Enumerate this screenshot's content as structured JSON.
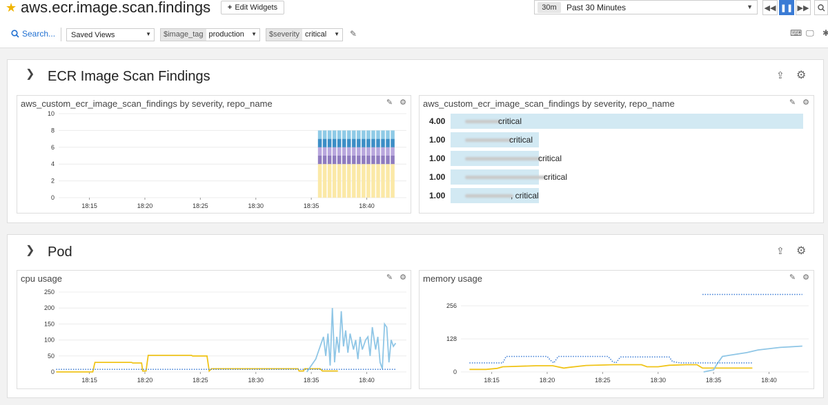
{
  "header": {
    "title": "aws.ecr.image.scan.findings",
    "edit_widgets": "Edit Widgets",
    "time_chip": "30m",
    "time_range": "Past 30 Minutes"
  },
  "filters": {
    "search": "Search...",
    "saved_views": "Saved Views",
    "image_tag_key": "$image_tag",
    "image_tag_value": "production",
    "severity_key": "$severity",
    "severity_value": "critical"
  },
  "groups": [
    {
      "title": "ECR Image Scan Findings",
      "widgets": [
        {
          "title": "aws_custom_ecr_image_scan_findings by severity, repo_name",
          "chart_data": {
            "type": "bar",
            "stacked": true,
            "x_ticks": [
              "18:15",
              "18:20",
              "18:25",
              "18:30",
              "18:35",
              "18:40"
            ],
            "y_ticks": [
              "0",
              "2",
              "4",
              "6",
              "8",
              "10"
            ],
            "ylim": [
              0,
              10
            ],
            "series": [
              {
                "values": [
                  4,
                  4,
                  4,
                  4,
                  4,
                  4,
                  4,
                  4,
                  4,
                  4,
                  4,
                  4,
                  4,
                  4,
                  4,
                  4
                ],
                "color": "#fbe9a7"
              },
              {
                "values": [
                  1,
                  1,
                  1,
                  1,
                  1,
                  1,
                  1,
                  1,
                  1,
                  1,
                  1,
                  1,
                  1,
                  1,
                  1,
                  1
                ],
                "color": "#8f7cbf"
              },
              {
                "values": [
                  1,
                  1,
                  1,
                  1,
                  1,
                  1,
                  1,
                  1,
                  1,
                  1,
                  1,
                  1,
                  1,
                  1,
                  1,
                  1
                ],
                "color": "#b9a7dd"
              },
              {
                "values": [
                  1,
                  1,
                  1,
                  1,
                  1,
                  1,
                  1,
                  1,
                  1,
                  1,
                  1,
                  1,
                  1,
                  1,
                  1,
                  1
                ],
                "color": "#3c8ec6"
              },
              {
                "values": [
                  1,
                  1,
                  1,
                  1,
                  1,
                  1,
                  1,
                  1,
                  1,
                  1,
                  1,
                  1,
                  1,
                  1,
                  1,
                  1
                ],
                "color": "#8ecae6"
              }
            ],
            "bar_start_time": "18:35.6",
            "bar_end_time": "18:42.6"
          }
        },
        {
          "title": "aws_custom_ecr_image_scan_findings by severity, repo_name",
          "chart_data": {
            "type": "toplist",
            "max": 4,
            "rows": [
              {
                "value": "4.00",
                "value_num": 4,
                "label": "critical"
              },
              {
                "value": "1.00",
                "value_num": 1,
                "label": "critical"
              },
              {
                "value": "1.00",
                "value_num": 1,
                "label": "critical"
              },
              {
                "value": "1.00",
                "value_num": 1,
                "label": "critical"
              },
              {
                "value": "1.00",
                "value_num": 1,
                "label": ", critical"
              }
            ]
          }
        }
      ]
    },
    {
      "title": "Pod",
      "widgets": [
        {
          "title": "cpu usage",
          "chart_data": {
            "type": "line",
            "x_ticks": [
              "18:15",
              "18:20",
              "18:25",
              "18:30",
              "18:35",
              "18:40"
            ],
            "y_ticks": [
              "0",
              "50",
              "100",
              "150",
              "200",
              "250"
            ],
            "ylim": [
              0,
              250
            ],
            "series": [
              {
                "color": "#f0c419",
                "style": "solid",
                "points": [
                  [
                    12.0,
                    0
                  ],
                  [
                    15.3,
                    0
                  ],
                  [
                    15.5,
                    30
                  ],
                  [
                    18.8,
                    30
                  ],
                  [
                    18.9,
                    28
                  ],
                  [
                    19.7,
                    28
                  ],
                  [
                    19.8,
                    3
                  ],
                  [
                    20.1,
                    3
                  ],
                  [
                    20.3,
                    52
                  ],
                  [
                    24.2,
                    52
                  ],
                  [
                    24.3,
                    50
                  ],
                  [
                    25.6,
                    50
                  ],
                  [
                    25.8,
                    3
                  ],
                  [
                    26.0,
                    10
                  ],
                  [
                    33.8,
                    10
                  ],
                  [
                    33.9,
                    3
                  ],
                  [
                    34.3,
                    3
                  ],
                  [
                    34.4,
                    10
                  ],
                  [
                    35.8,
                    10
                  ],
                  [
                    36.0,
                    3
                  ],
                  [
                    37.4,
                    3
                  ]
                ]
              },
              {
                "color": "#8fc6e6",
                "style": "solid",
                "points": [
                  [
                    34.6,
                    0
                  ],
                  [
                    35.4,
                    40
                  ],
                  [
                    36.1,
                    110
                  ],
                  [
                    36.3,
                    50
                  ],
                  [
                    36.5,
                    120
                  ],
                  [
                    36.7,
                    20
                  ],
                  [
                    36.9,
                    200
                  ],
                  [
                    37.1,
                    30
                  ],
                  [
                    37.3,
                    110
                  ],
                  [
                    37.5,
                    60
                  ],
                  [
                    37.7,
                    190
                  ],
                  [
                    37.9,
                    80
                  ],
                  [
                    38.1,
                    130
                  ],
                  [
                    38.3,
                    60
                  ],
                  [
                    38.5,
                    120
                  ],
                  [
                    38.8,
                    70
                  ],
                  [
                    39.0,
                    100
                  ],
                  [
                    39.2,
                    40
                  ],
                  [
                    39.4,
                    110
                  ],
                  [
                    39.6,
                    70
                  ],
                  [
                    39.9,
                    100
                  ],
                  [
                    40.1,
                    110
                  ],
                  [
                    40.3,
                    50
                  ],
                  [
                    40.5,
                    140
                  ],
                  [
                    40.8,
                    70
                  ],
                  [
                    41.0,
                    110
                  ],
                  [
                    41.2,
                    30
                  ],
                  [
                    41.4,
                    10
                  ],
                  [
                    41.6,
                    150
                  ],
                  [
                    41.8,
                    140
                  ],
                  [
                    42.0,
                    30
                  ],
                  [
                    42.2,
                    100
                  ],
                  [
                    42.4,
                    80
                  ],
                  [
                    42.6,
                    90
                  ]
                ]
              },
              {
                "color": "#3a7bd5",
                "style": "dotted",
                "points": [
                  [
                    12.0,
                    8
                  ],
                  [
                    42.6,
                    8
                  ]
                ]
              }
            ]
          }
        },
        {
          "title": "memory usage",
          "chart_data": {
            "type": "line",
            "x_ticks": [
              "18:15",
              "18:20",
              "18:25",
              "18:30",
              "18:35",
              "18:40"
            ],
            "y_ticks": [
              "0",
              "128",
              "256"
            ],
            "ylim": [
              0,
              320
            ],
            "series": [
              {
                "color": "#f0c419",
                "style": "solid",
                "points": [
                  [
                    13.0,
                    10
                  ],
                  [
                    14.5,
                    10
                  ],
                  [
                    15.5,
                    14
                  ],
                  [
                    16.0,
                    20
                  ],
                  [
                    19.0,
                    24
                  ],
                  [
                    20.5,
                    24
                  ],
                  [
                    21.5,
                    15
                  ],
                  [
                    22.0,
                    18
                  ],
                  [
                    23.5,
                    25
                  ],
                  [
                    26.0,
                    28
                  ],
                  [
                    28.5,
                    28
                  ],
                  [
                    29.0,
                    20
                  ],
                  [
                    30.0,
                    20
                  ],
                  [
                    31.0,
                    26
                  ],
                  [
                    32.5,
                    28
                  ],
                  [
                    33.5,
                    28
                  ],
                  [
                    34.0,
                    15
                  ],
                  [
                    35.5,
                    15
                  ],
                  [
                    38.5,
                    15
                  ]
                ]
              },
              {
                "color": "#8fc6e6",
                "style": "solid",
                "points": [
                  [
                    34.1,
                    0
                  ],
                  [
                    35.0,
                    8
                  ],
                  [
                    35.3,
                    30
                  ],
                  [
                    35.8,
                    60
                  ],
                  [
                    36.5,
                    65
                  ],
                  [
                    38.0,
                    75
                  ],
                  [
                    39.0,
                    85
                  ],
                  [
                    41.0,
                    95
                  ],
                  [
                    43.0,
                    100
                  ]
                ]
              },
              {
                "color": "#3a7bd5",
                "style": "dotted",
                "points": [
                  [
                    13.0,
                    35
                  ],
                  [
                    16.0,
                    35
                  ],
                  [
                    16.3,
                    60
                  ],
                  [
                    20.0,
                    60
                  ],
                  [
                    20.3,
                    45
                  ],
                  [
                    20.6,
                    35
                  ],
                  [
                    21.0,
                    60
                  ],
                  [
                    25.5,
                    60
                  ],
                  [
                    25.9,
                    40
                  ],
                  [
                    26.2,
                    35
                  ],
                  [
                    26.6,
                    58
                  ],
                  [
                    31.0,
                    58
                  ],
                  [
                    31.3,
                    40
                  ],
                  [
                    32.0,
                    35
                  ],
                  [
                    38.5,
                    35
                  ]
                ]
              },
              {
                "color": "#3a7bd5",
                "style": "dotted",
                "points": [
                  [
                    34.0,
                    300
                  ],
                  [
                    43.0,
                    300
                  ]
                ]
              }
            ]
          }
        }
      ]
    }
  ]
}
